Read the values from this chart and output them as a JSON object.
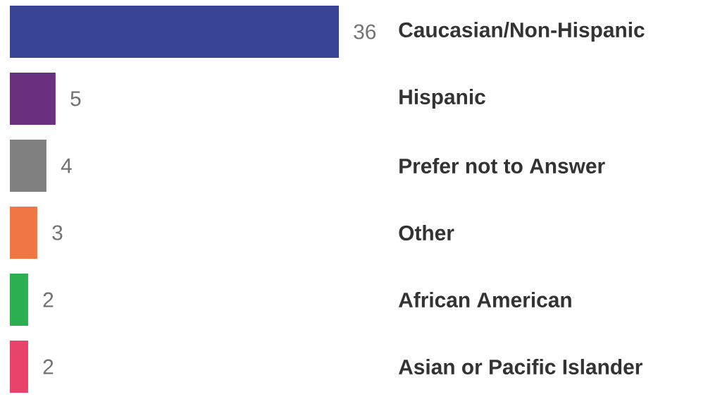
{
  "chart_data": {
    "type": "bar",
    "orientation": "horizontal",
    "categories": [
      "Caucasian/Non-Hispanic",
      "Hispanic",
      "Prefer not to Answer",
      "Other",
      "African American",
      "Asian or Pacific Islander"
    ],
    "values": [
      36,
      5,
      4,
      3,
      2,
      2
    ],
    "colors": [
      "#3a4494",
      "#6b2f7f",
      "#808080",
      "#ee7744",
      "#2ab050",
      "#e8436a"
    ],
    "data_labels": true
  }
}
